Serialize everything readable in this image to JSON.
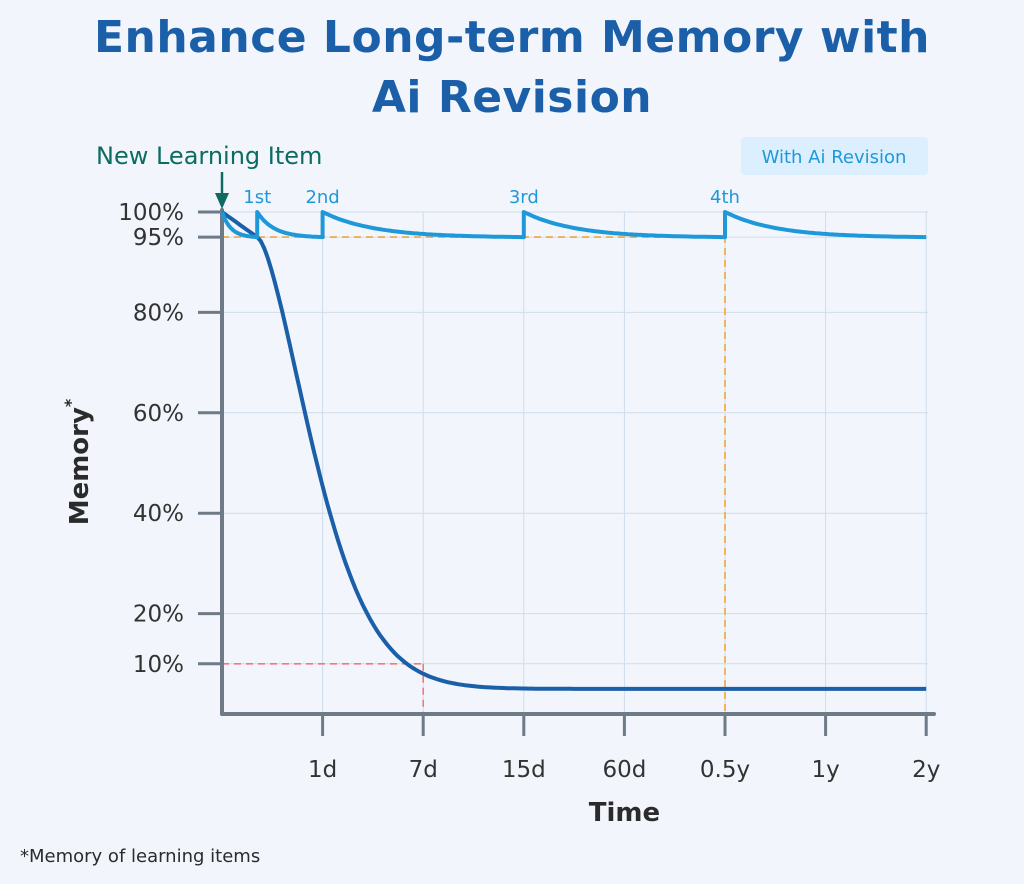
{
  "title_line1": "Enhance Long-term Memory with",
  "title_line2": "Ai Revision",
  "footnote": "*Memory of learning items",
  "colors": {
    "title": "#1a5fa8",
    "revision": "#1e98d9",
    "forgetting": "#1a5fa8",
    "grid": "#cfdcea",
    "axis": "#6e7a86",
    "guide_orange": "#f0a53c",
    "guide_red": "#ee7b76",
    "marker": "#0e6b62",
    "legend_bg": "#dcefff"
  },
  "chart_data": {
    "type": "line",
    "title": "Enhance Long-term Memory with Ai Revision",
    "xlabel": "Time",
    "ylabel": "Memory",
    "ylabel_suffix": "*",
    "x_ticks": [
      "1d",
      "7d",
      "15d",
      "60d",
      "0.5y",
      "1y",
      "2y"
    ],
    "y_ticks": [
      "10%",
      "20%",
      "40%",
      "60%",
      "80%",
      "95%",
      "100%"
    ],
    "y_tick_values": [
      10,
      20,
      40,
      60,
      80,
      95,
      100
    ],
    "ylim": [
      0,
      100
    ],
    "grid": true,
    "legend": {
      "label": "With Ai Revision",
      "position": "top-right"
    },
    "annotation": {
      "label": "New Learning Item",
      "x": "0"
    },
    "revision_labels": [
      "1st",
      "2nd",
      "3rd",
      "4th"
    ],
    "series": [
      {
        "name": "With Ai Revision",
        "x": [
          0,
          0.35,
          0.35,
          1,
          1,
          3,
          3,
          5,
          5,
          7
        ],
        "y": [
          100,
          95,
          100,
          95,
          100,
          95,
          100,
          95,
          100,
          95
        ]
      },
      {
        "x": [
          0,
          0.35,
          1,
          2,
          3,
          4,
          7
        ],
        "y": [
          100,
          95,
          40,
          10,
          5,
          5,
          5
        ]
      }
    ]
  }
}
